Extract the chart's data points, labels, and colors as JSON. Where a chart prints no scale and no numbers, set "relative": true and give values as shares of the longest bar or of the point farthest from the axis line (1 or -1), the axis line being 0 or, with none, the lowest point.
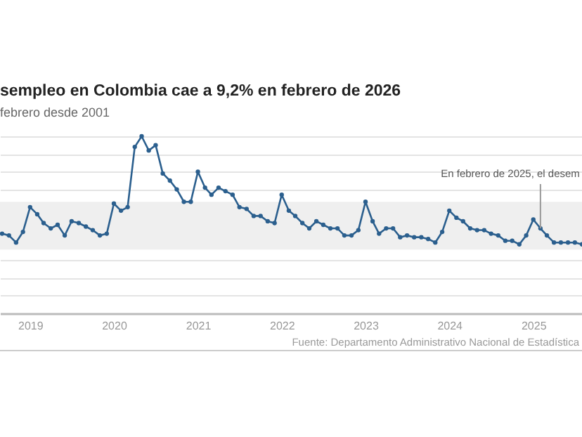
{
  "chart_data": {
    "type": "line",
    "title": "sempleo en Colombia cae a 9,2% en febrero de 2026",
    "subtitle": "febrero desde 2001",
    "relative": true,
    "grid": "y",
    "marker": "circle",
    "line_style": "solid",
    "xlim": [
      "2018-08-23",
      "2025-08-01"
    ],
    "xticks": [
      {
        "value": "2019-01",
        "label": "2019"
      },
      {
        "value": "2020-01",
        "label": "2020"
      },
      {
        "value": "2021-01",
        "label": "2021"
      },
      {
        "value": "2022-01",
        "label": "2022"
      },
      {
        "value": "2023-01",
        "label": "2023"
      },
      {
        "value": "2024-01",
        "label": "2024"
      },
      {
        "value": "2025-01",
        "label": "2025"
      }
    ],
    "x": [
      "2018-09",
      "2018-10",
      "2018-11",
      "2018-12",
      "2019-01",
      "2019-02",
      "2019-03",
      "2019-04",
      "2019-05",
      "2019-06",
      "2019-07",
      "2019-08",
      "2019-09",
      "2019-10",
      "2019-11",
      "2019-12",
      "2020-01",
      "2020-02",
      "2020-03",
      "2020-04",
      "2020-05",
      "2020-06",
      "2020-07",
      "2020-08",
      "2020-09",
      "2020-10",
      "2020-11",
      "2020-12",
      "2021-01",
      "2021-02",
      "2021-03",
      "2021-04",
      "2021-05",
      "2021-06",
      "2021-07",
      "2021-08",
      "2021-09",
      "2021-10",
      "2021-11",
      "2021-12",
      "2022-01",
      "2022-02",
      "2022-03",
      "2022-04",
      "2022-05",
      "2022-06",
      "2022-07",
      "2022-08",
      "2022-09",
      "2022-10",
      "2022-11",
      "2022-12",
      "2023-01",
      "2023-02",
      "2023-03",
      "2023-04",
      "2023-05",
      "2023-06",
      "2023-07",
      "2023-08",
      "2023-09",
      "2023-10",
      "2023-11",
      "2023-12",
      "2024-01",
      "2024-02",
      "2024-03",
      "2024-04",
      "2024-05",
      "2024-06",
      "2024-07",
      "2024-08",
      "2024-09",
      "2024-10",
      "2024-11",
      "2024-12",
      "2025-01",
      "2025-02",
      "2025-03",
      "2025-04",
      "2025-05",
      "2025-06",
      "2025-07",
      "2025-08"
    ],
    "series": [
      {
        "color": "#2b5f8e",
        "values": [
          0.45,
          0.44,
          0.4,
          0.46,
          0.6,
          0.56,
          0.51,
          0.48,
          0.5,
          0.44,
          0.52,
          0.51,
          0.49,
          0.47,
          0.44,
          0.45,
          0.62,
          0.58,
          0.6,
          0.94,
          1,
          0.92,
          0.95,
          0.79,
          0.75,
          0.7,
          0.63,
          0.63,
          0.8,
          0.71,
          0.67,
          0.71,
          0.69,
          0.67,
          0.6,
          0.59,
          0.55,
          0.55,
          0.52,
          0.51,
          0.67,
          0.58,
          0.55,
          0.51,
          0.48,
          0.52,
          0.5,
          0.48,
          0.48,
          0.44,
          0.44,
          0.47,
          0.63,
          0.52,
          0.45,
          0.48,
          0.48,
          0.43,
          0.44,
          0.43,
          0.43,
          0.42,
          0.4,
          0.46,
          0.58,
          0.54,
          0.52,
          0.48,
          0.47,
          0.47,
          0.45,
          0.44,
          0.41,
          0.41,
          0.39,
          0.44,
          0.53,
          0.48,
          0.44,
          0.4,
          0.4,
          0.4,
          0.4,
          0.39
        ]
      }
    ],
    "bands": [
      {
        "axis": "y",
        "from": 0.36,
        "to": 0.63,
        "color": "#efefef"
      }
    ],
    "annotations": [
      {
        "text": "En febrero de 2025, el desem",
        "x": "2025-02",
        "y": 0.48
      },
      "Fuente: Departamento Administrativo Nacional de Estadística"
    ]
  }
}
